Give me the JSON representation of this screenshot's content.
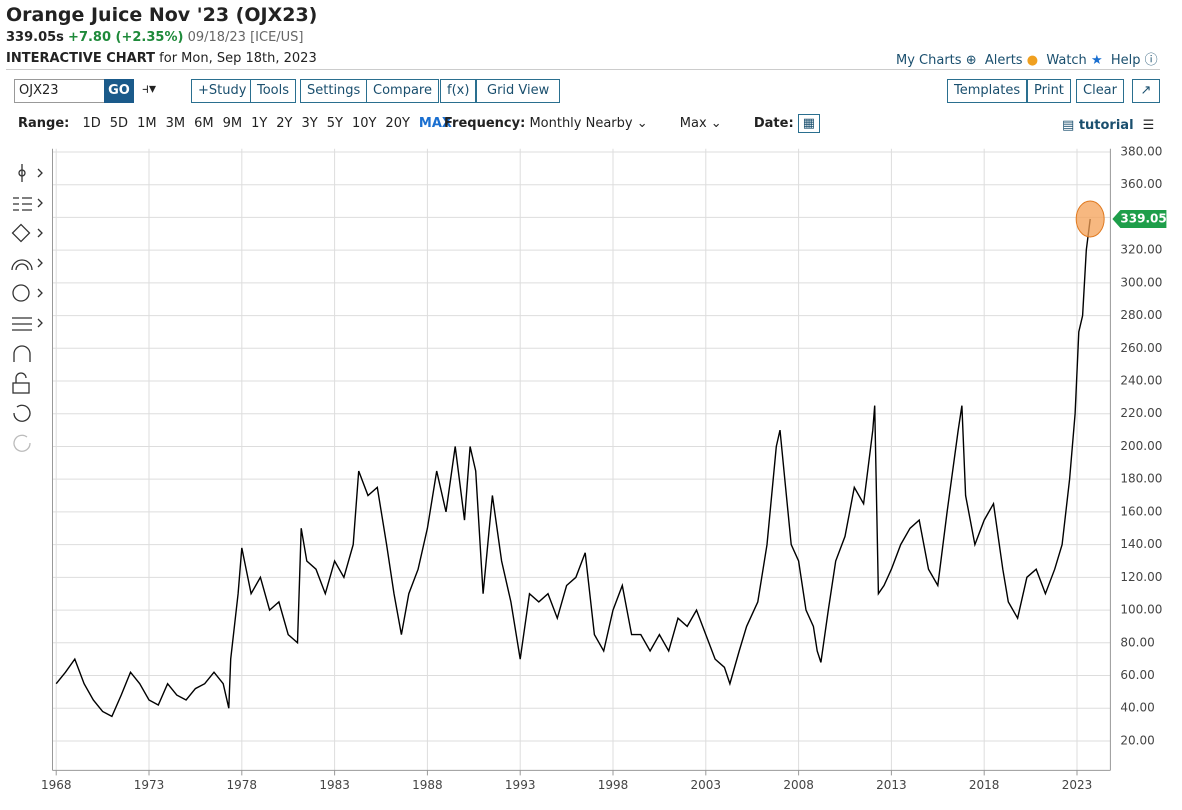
{
  "header": {
    "title": "Orange Juice Nov '23 (OJX23)",
    "price": "339.05s",
    "change": "+7.80 (+2.35%)",
    "quote_info": "09/18/23 [ICE/US]",
    "chart_label": "INTERACTIVE CHART",
    "chart_date": "for Mon, Sep 18th, 2023"
  },
  "links": [
    "My Charts",
    "Alerts",
    "Watch",
    "Help"
  ],
  "toolbar": {
    "symbol": "OJX23",
    "go": "GO",
    "buttons": [
      "+Study",
      "Tools",
      "Settings",
      "Compare",
      "f(x)",
      "Grid View"
    ],
    "right_buttons": [
      "Templates",
      "Print",
      "Clear"
    ]
  },
  "range": {
    "label": "Range:",
    "options": [
      "1D",
      "5D",
      "1M",
      "3M",
      "6M",
      "9M",
      "1Y",
      "2Y",
      "3Y",
      "5Y",
      "10Y",
      "20Y",
      "MAX"
    ],
    "frequency_label": "Frequency:",
    "frequency": "Monthly Nearby",
    "max": "Max",
    "date_label": "Date:",
    "tutorial": "tutorial"
  },
  "chart_data": {
    "type": "line",
    "color": "#000000",
    "last_color": "#1e9e4a",
    "grid": true,
    "x": [
      1968.0,
      1968.5,
      1969.0,
      1969.5,
      1970.0,
      1970.5,
      1971.0,
      1971.5,
      1972.0,
      1972.5,
      1973.0,
      1973.5,
      1974.0,
      1974.5,
      1975.0,
      1975.5,
      1976.0,
      1976.5,
      1977.0,
      1977.3,
      1977.4,
      1977.8,
      1978.0,
      1978.5,
      1979.0,
      1979.5,
      1980.0,
      1980.5,
      1981.0,
      1981.2,
      1981.5,
      1982.0,
      1982.5,
      1983.0,
      1983.5,
      1984.0,
      1984.3,
      1984.8,
      1985.3,
      1985.8,
      1986.2,
      1986.6,
      1987.0,
      1987.5,
      1988.0,
      1988.5,
      1989.0,
      1989.5,
      1990.0,
      1990.3,
      1990.6,
      1991.0,
      1991.5,
      1992.0,
      1992.5,
      1993.0,
      1993.5,
      1994.0,
      1994.5,
      1995.0,
      1995.5,
      1996.0,
      1996.5,
      1997.0,
      1997.5,
      1998.0,
      1998.5,
      1999.0,
      1999.5,
      2000.0,
      2000.5,
      2001.0,
      2001.5,
      2002.0,
      2002.5,
      2003.0,
      2003.5,
      2004.0,
      2004.3,
      2004.8,
      2005.2,
      2005.8,
      2006.3,
      2006.8,
      2007.0,
      2007.3,
      2007.6,
      2008.0,
      2008.4,
      2008.8,
      2009.0,
      2009.2,
      2009.6,
      2010.0,
      2010.5,
      2011.0,
      2011.5,
      2012.0,
      2012.1,
      2012.3,
      2012.6,
      2013.0,
      2013.5,
      2014.0,
      2014.5,
      2015.0,
      2015.5,
      2016.0,
      2016.6,
      2016.8,
      2017.0,
      2017.5,
      2018.0,
      2018.5,
      2019.0,
      2019.3,
      2019.8,
      2020.3,
      2020.8,
      2021.3,
      2021.8,
      2022.2,
      2022.6,
      2022.9,
      2023.1,
      2023.3,
      2023.5,
      2023.71
    ],
    "values": [
      55,
      62,
      70,
      55,
      45,
      38,
      35,
      48,
      62,
      55,
      45,
      42,
      55,
      48,
      45,
      52,
      55,
      62,
      55,
      40,
      70,
      110,
      138,
      110,
      120,
      100,
      105,
      85,
      80,
      150,
      130,
      125,
      110,
      130,
      120,
      140,
      185,
      170,
      175,
      140,
      110,
      85,
      110,
      125,
      150,
      185,
      160,
      200,
      155,
      200,
      185,
      110,
      170,
      130,
      105,
      70,
      110,
      105,
      110,
      95,
      115,
      120,
      135,
      85,
      75,
      100,
      115,
      85,
      85,
      75,
      85,
      75,
      95,
      90,
      100,
      85,
      70,
      65,
      55,
      75,
      90,
      105,
      140,
      200,
      210,
      175,
      140,
      130,
      100,
      90,
      75,
      68,
      100,
      130,
      145,
      175,
      165,
      210,
      225,
      110,
      115,
      125,
      140,
      150,
      155,
      125,
      115,
      160,
      210,
      225,
      170,
      140,
      155,
      165,
      125,
      105,
      95,
      120,
      125,
      110,
      125,
      140,
      180,
      220,
      270,
      280,
      320,
      339.05
    ],
    "xlim": [
      1967.8,
      2024.8
    ],
    "xticks": [
      1968,
      1973,
      1978,
      1983,
      1988,
      1993,
      1998,
      2003,
      2008,
      2013,
      2018,
      2023
    ],
    "ylim": [
      2,
      382
    ],
    "yticks": [
      {
        "value": 20,
        "label": "20.00"
      },
      {
        "value": 40,
        "label": "40.00"
      },
      {
        "value": 60,
        "label": "60.00"
      },
      {
        "value": 80,
        "label": "80.00"
      },
      {
        "value": 100,
        "label": "100.00"
      },
      {
        "value": 120,
        "label": "120.00"
      },
      {
        "value": 140,
        "label": "140.00"
      },
      {
        "value": 160,
        "label": "160.00"
      },
      {
        "value": 180,
        "label": "180.00"
      },
      {
        "value": 200,
        "label": "200.00"
      },
      {
        "value": 220,
        "label": "220.00"
      },
      {
        "value": 240,
        "label": "240.00"
      },
      {
        "value": 260,
        "label": "260.00"
      },
      {
        "value": 280,
        "label": "280.00"
      },
      {
        "value": 300,
        "label": "300.00"
      },
      {
        "value": 320,
        "label": "320.00"
      },
      {
        "value": 340,
        "label": "340.00"
      },
      {
        "value": 360,
        "label": "360.00"
      },
      {
        "value": 380,
        "label": "380.00"
      }
    ]
  }
}
